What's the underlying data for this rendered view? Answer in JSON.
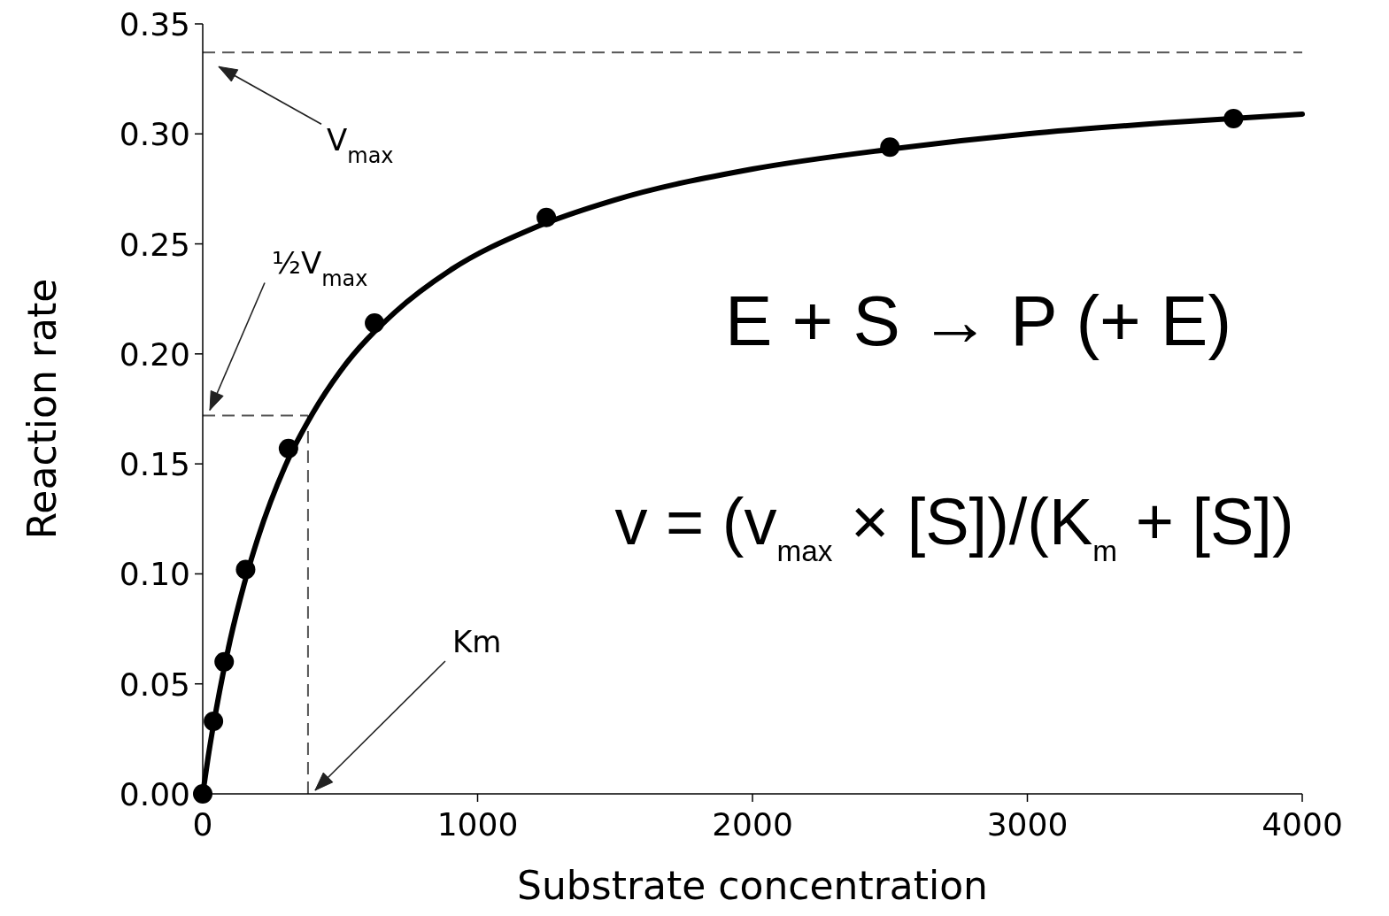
{
  "chart_data": {
    "type": "scatter",
    "xlabel": "Substrate concentration",
    "ylabel": "Reaction rate",
    "xlim": [
      0,
      4000
    ],
    "ylim": [
      0,
      0.35
    ],
    "xticks": [
      0,
      1000,
      2000,
      3000,
      4000
    ],
    "yticks": [
      {
        "value": 0,
        "label": "0.00"
      },
      {
        "value": 0.05,
        "label": "0.05"
      },
      {
        "value": 0.1,
        "label": "0.10"
      },
      {
        "value": 0.15,
        "label": "0.15"
      },
      {
        "value": 0.2,
        "label": "0.20"
      },
      {
        "value": 0.25,
        "label": "0.25"
      },
      {
        "value": 0.3,
        "label": "0.30"
      },
      {
        "value": 0.35,
        "label": "0.35"
      }
    ],
    "marker": "circle",
    "line_style": "solid",
    "series": [
      {
        "type": "line",
        "marker": "none",
        "color": "#000000",
        "x": [
          0,
          20,
          50,
          100,
          150,
          200,
          300,
          400,
          500,
          700,
          900,
          1200,
          1500,
          2000,
          2500,
          3000,
          3500,
          4000
        ],
        "values": [
          0,
          0.017,
          0.039,
          0.07,
          0.095,
          0.116,
          0.149,
          0.173,
          0.192,
          0.219,
          0.238,
          0.257,
          0.27,
          0.284,
          0.293,
          0.3,
          0.305,
          0.309
        ]
      },
      {
        "color": "#000000",
        "x": [
          0,
          39,
          78,
          156,
          312,
          625,
          1250,
          2500,
          3750
        ],
        "values": [
          0,
          0.033,
          0.06,
          0.102,
          0.157,
          0.214,
          0.262,
          0.294,
          0.307
        ]
      }
    ],
    "ref_lines": [
      {
        "axis": "y",
        "value": 0.337,
        "color": "#555555",
        "line_style": "dashed"
      },
      {
        "axis": "y",
        "value": 0.172,
        "color": "#555555",
        "line_style": "dashed"
      },
      {
        "axis": "x",
        "value": 383,
        "color": "#555555",
        "line_style": "dashed"
      }
    ],
    "annotations": [
      "V$_{max}$",
      "½V$_{max}$",
      "Km",
      "E + S → P (+ E)",
      "v = (v$_{max}$ × [S])/(K$_{m}$ + [S])"
    ]
  }
}
